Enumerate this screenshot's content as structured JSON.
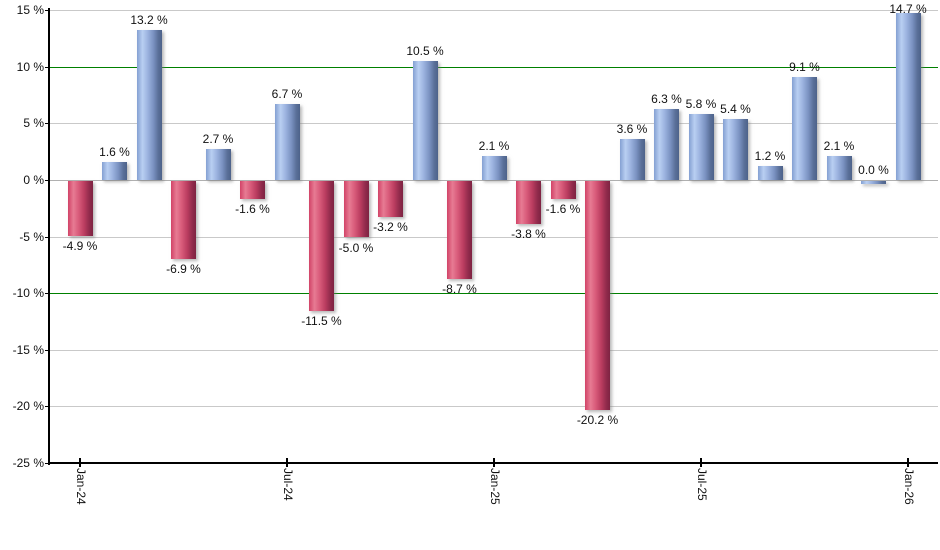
{
  "chart_data": {
    "type": "bar",
    "title": "",
    "xlabel": "",
    "ylabel": "",
    "y_unit": "%",
    "ylim": [
      -25,
      15
    ],
    "grid": true,
    "legend_position": "none",
    "y_ticks": [
      15,
      10,
      5,
      0,
      -5,
      -10,
      -15,
      -20,
      -25
    ],
    "y_tick_labels": [
      "15 %",
      "10 %",
      "5 %",
      "0 %",
      "-5 %",
      "-10 %",
      "-15 %",
      "-20 %",
      "-25 %"
    ],
    "x_ticks": [
      {
        "label": "Jan-24",
        "bar_index": 0
      },
      {
        "label": "Jul-24",
        "bar_index": 6
      },
      {
        "label": "Jan-25",
        "bar_index": 12
      },
      {
        "label": "Jul-25",
        "bar_index": 18
      },
      {
        "label": "Jan-26",
        "bar_index": 24
      }
    ],
    "values": [
      -4.9,
      1.6,
      13.2,
      -6.9,
      2.7,
      -1.6,
      6.7,
      -11.5,
      -5.0,
      -3.2,
      10.5,
      -8.7,
      2.1,
      -3.8,
      -1.6,
      -20.2,
      3.6,
      6.3,
      5.8,
      5.4,
      1.2,
      9.1,
      2.1,
      0.0,
      14.7
    ],
    "value_labels": [
      "-4.9 %",
      "1.6 %",
      "13.2 %",
      "-6.9 %",
      "2.7 %",
      "-1.6 %",
      "6.7 %",
      "-11.5 %",
      "-5.0 %",
      "-3.2 %",
      "10.5 %",
      "-8.7 %",
      "2.1 %",
      "-3.8 %",
      "-1.6 %",
      "-20.2 %",
      "3.6 %",
      "6.3 %",
      "5.8 %",
      "5.4 %",
      "1.2 %",
      "9.1 %",
      "2.1 %",
      "0.0 %",
      "14.7 %"
    ],
    "reference_lines": [
      {
        "value": 10,
        "color": "#008000"
      },
      {
        "value": -10,
        "color": "#008000"
      }
    ],
    "colors": {
      "positive_bar": "#8fa9d6",
      "negative_bar": "#cc4a6b",
      "reference_line": "#008000",
      "gridline": "#c9c9c9",
      "zero_line": "#b0b0b0",
      "axis": "#000000",
      "text": "#111111"
    }
  }
}
